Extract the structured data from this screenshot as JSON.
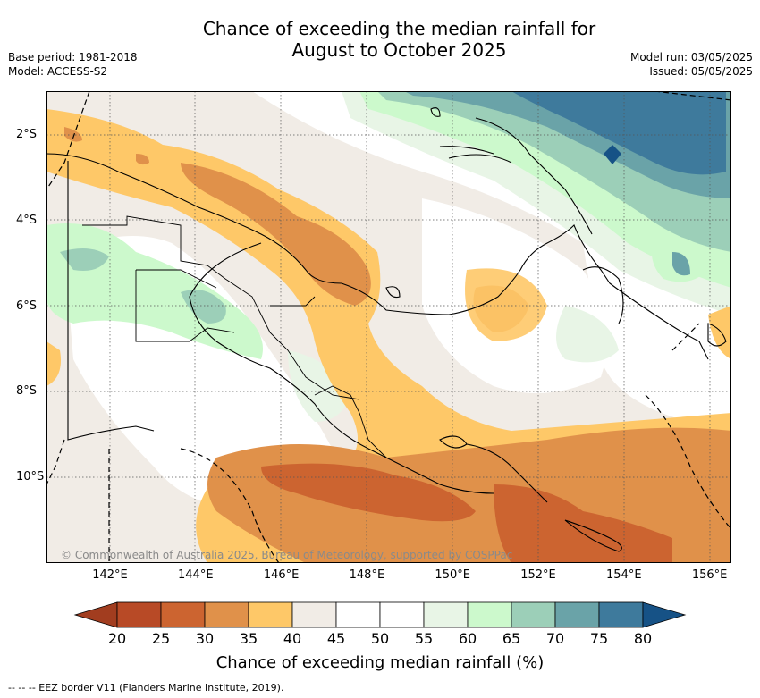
{
  "title_line1": "Chance of exceeding the median rainfall for",
  "title_line2": "August to October 2025",
  "meta_left": [
    "Base period: 1981-2018",
    "Model: ACCESS-S2"
  ],
  "meta_right": [
    "Model run: 03/05/2025",
    "Issued: 05/05/2025"
  ],
  "lat_labels": [
    {
      "label": "2°S",
      "lat": -2
    },
    {
      "label": "4°S",
      "lat": -4
    },
    {
      "label": "6°S",
      "lat": -6
    },
    {
      "label": "8°S",
      "lat": -8
    },
    {
      "label": "10°S",
      "lat": -10
    }
  ],
  "lon_labels": [
    {
      "label": "142°E",
      "lon": 142
    },
    {
      "label": "144°E",
      "lon": 144
    },
    {
      "label": "146°E",
      "lon": 146
    },
    {
      "label": "148°E",
      "lon": 148
    },
    {
      "label": "150°E",
      "lon": 150
    },
    {
      "label": "152°E",
      "lon": 152
    },
    {
      "label": "154°E",
      "lon": 154
    },
    {
      "label": "156°E",
      "lon": 156
    }
  ],
  "copyright": "© Commonwealth of Australia 2025, Bureau of Meteorology, supported by COSPPac",
  "colorbar": {
    "ticks": [
      "20",
      "25",
      "30",
      "35",
      "40",
      "45",
      "50",
      "55",
      "60",
      "65",
      "70",
      "75",
      "80"
    ],
    "colors": [
      "#a23d1f",
      "#b84a26",
      "#cc6430",
      "#e0914a",
      "#fec868",
      "#f1ece6",
      "#ffffff",
      "#ffffff",
      "#e8f5e6",
      "#ccf9cc",
      "#9ccfb8",
      "#6aa3a8",
      "#3e7a9c",
      "#165286"
    ],
    "title": "Chance of exceeding median rainfall (%)"
  },
  "footnote": "-- -- -- EEZ border V11 (Flanders Marine Institute, 2019)."
}
